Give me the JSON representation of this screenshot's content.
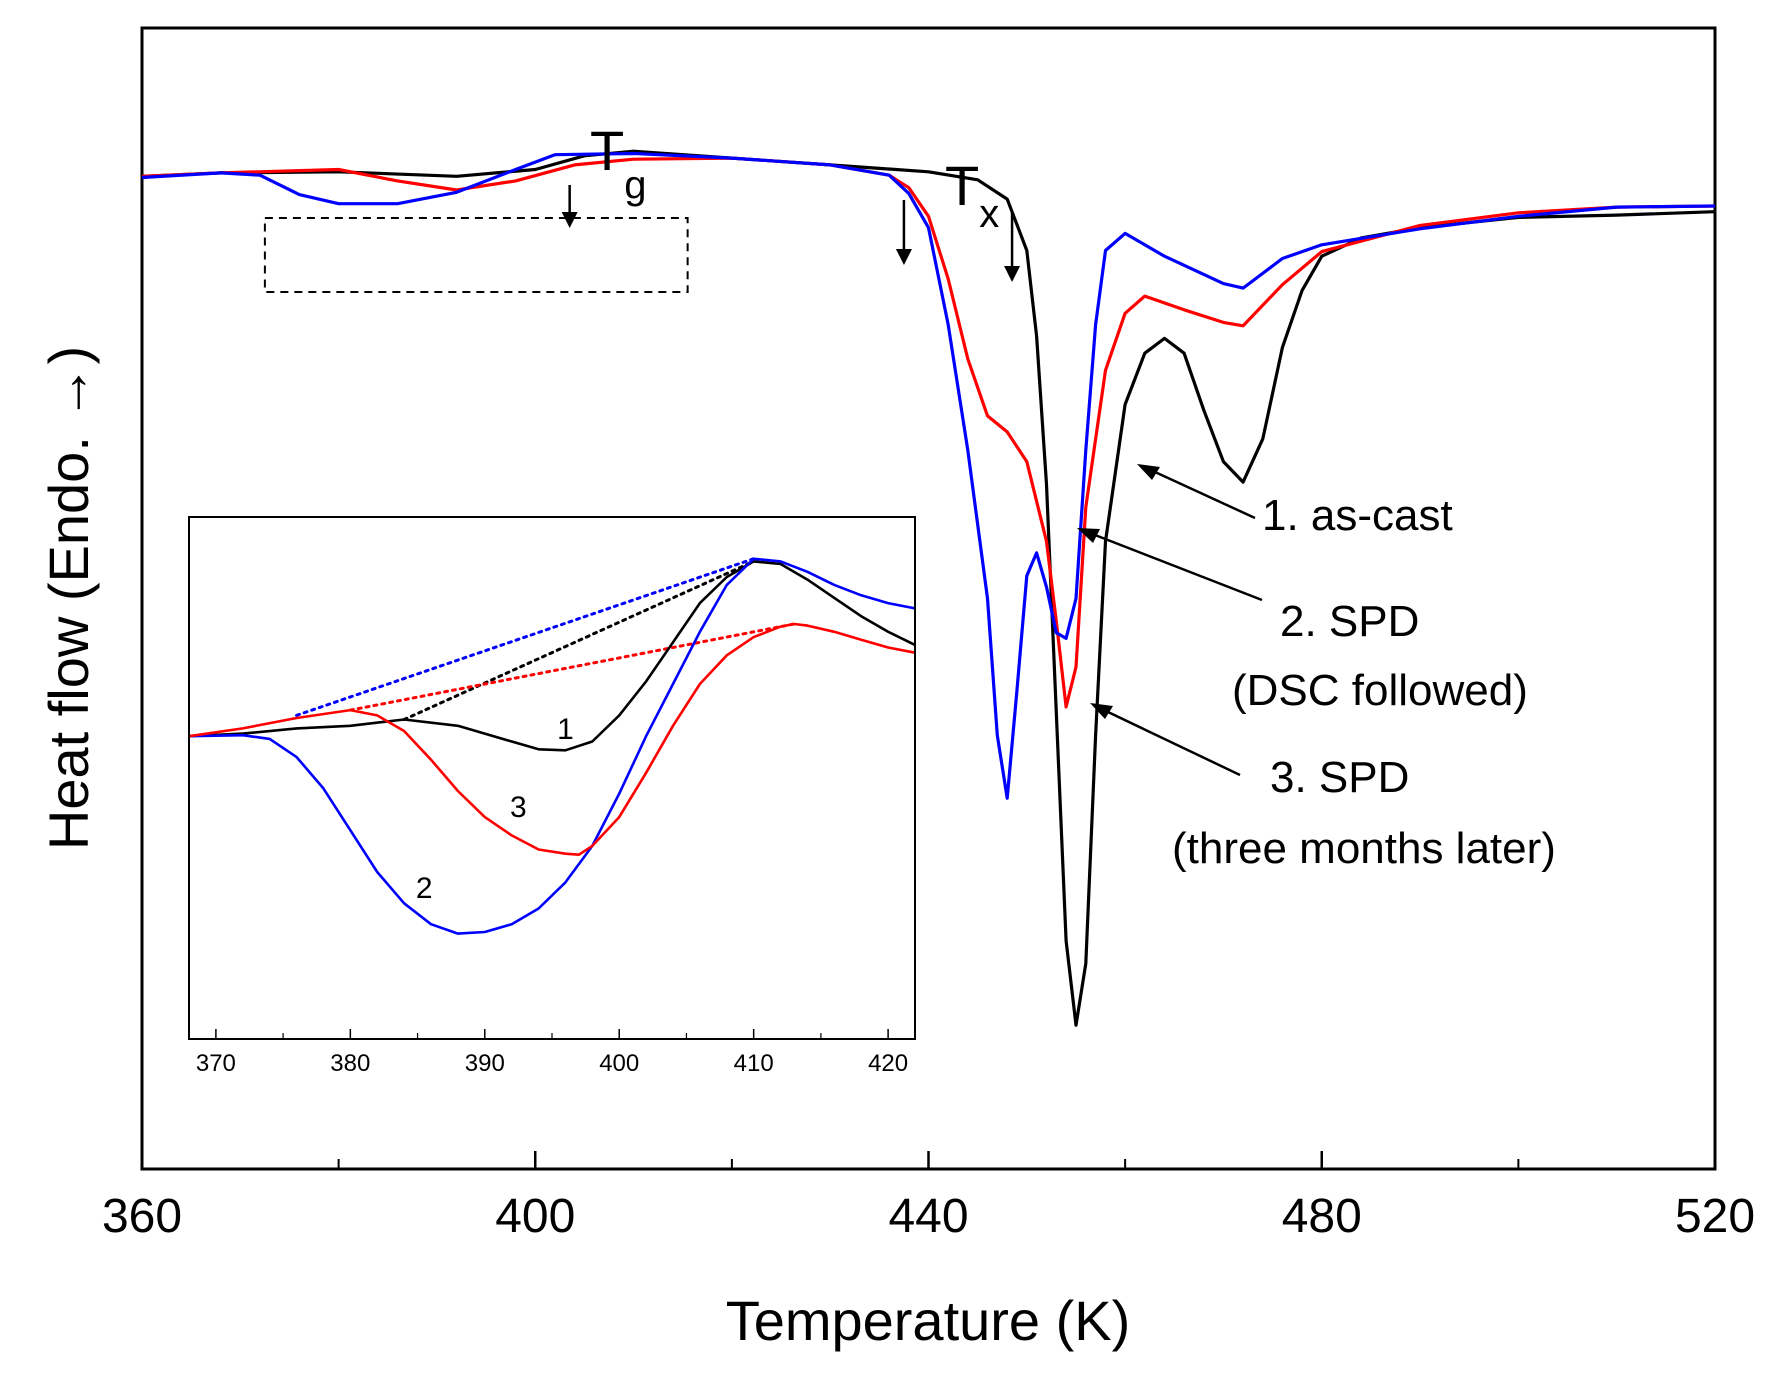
{
  "chart_data": [
    {
      "type": "line",
      "xlabel": "Temperature (K)",
      "ylabel": "Heat flow (Endo. →)",
      "xlim": [
        360,
        520
      ],
      "ylim": [
        0,
        100
      ],
      "x_ticks": [
        360,
        400,
        440,
        480,
        520
      ],
      "y_ticks_shown": false,
      "grid": false,
      "colors": {
        "1": "#000000",
        "2": "#0000ff",
        "3": "#ff0000"
      },
      "series": [
        {
          "name": "1. as-cast",
          "color": "#000000",
          "points": [
            [
              360,
              87.0
            ],
            [
              368,
              87.3
            ],
            [
              380,
              87.4
            ],
            [
              392,
              87.0
            ],
            [
              400,
              87.6
            ],
            [
              405,
              88.8
            ],
            [
              410,
              89.2
            ],
            [
              420,
              88.6
            ],
            [
              430,
              88.0
            ],
            [
              440,
              87.4
            ],
            [
              445,
              86.7
            ],
            [
              448,
              85.0
            ],
            [
              450,
              80.5
            ],
            [
              451,
              73.0
            ],
            [
              452,
              60.0
            ],
            [
              453,
              40.0
            ],
            [
              454,
              20.0
            ],
            [
              455,
              12.6
            ],
            [
              456,
              18.0
            ],
            [
              457,
              38.0
            ],
            [
              458,
              55.0
            ],
            [
              460,
              67.0
            ],
            [
              462,
              71.5
            ],
            [
              464,
              72.8
            ],
            [
              466,
              71.5
            ],
            [
              468,
              66.5
            ],
            [
              470,
              62.0
            ],
            [
              472,
              60.2
            ],
            [
              474,
              64.0
            ],
            [
              476,
              72.0
            ],
            [
              478,
              77.0
            ],
            [
              480,
              80.0
            ],
            [
              484,
              81.6
            ],
            [
              490,
              82.5
            ],
            [
              500,
              83.4
            ],
            [
              510,
              83.6
            ],
            [
              520,
              83.9
            ]
          ]
        },
        {
          "name": "2. SPD",
          "color": "#0000ff",
          "points": [
            [
              360,
              86.9
            ],
            [
              368,
              87.3
            ],
            [
              372,
              87.1
            ],
            [
              376,
              85.4
            ],
            [
              380,
              84.6
            ],
            [
              386,
              84.6
            ],
            [
              392,
              85.6
            ],
            [
              398,
              87.6
            ],
            [
              402,
              88.9
            ],
            [
              410,
              89.0
            ],
            [
              420,
              88.6
            ],
            [
              430,
              88.0
            ],
            [
              436,
              87.1
            ],
            [
              438,
              85.5
            ],
            [
              440,
              82.5
            ],
            [
              442,
              74.0
            ],
            [
              444,
              63.0
            ],
            [
              446,
              50.0
            ],
            [
              447,
              38.0
            ],
            [
              448,
              32.5
            ],
            [
              449,
              42.0
            ],
            [
              450,
              52.0
            ],
            [
              451,
              54.0
            ],
            [
              452,
              51.0
            ],
            [
              453,
              47.0
            ],
            [
              454,
              46.5
            ],
            [
              455,
              50.0
            ],
            [
              456,
              63.0
            ],
            [
              457,
              74.0
            ],
            [
              458,
              80.5
            ],
            [
              460,
              82.0
            ],
            [
              464,
              80.0
            ],
            [
              470,
              77.6
            ],
            [
              472,
              77.2
            ],
            [
              476,
              79.8
            ],
            [
              480,
              81.0
            ],
            [
              490,
              82.4
            ],
            [
              500,
              83.5
            ],
            [
              510,
              84.3
            ],
            [
              520,
              84.4
            ]
          ]
        },
        {
          "name": "2. SPD (DSC followed)",
          "note": "3. SPD (three months later)",
          "color": "#ff0000",
          "points": [
            [
              360,
              87.0
            ],
            [
              368,
              87.3
            ],
            [
              380,
              87.6
            ],
            [
              386,
              86.6
            ],
            [
              392,
              85.8
            ],
            [
              398,
              86.6
            ],
            [
              404,
              88.0
            ],
            [
              410,
              88.5
            ],
            [
              420,
              88.6
            ],
            [
              430,
              88.0
            ],
            [
              436,
              87.1
            ],
            [
              438,
              86.0
            ],
            [
              440,
              83.5
            ],
            [
              442,
              78.0
            ],
            [
              444,
              71.0
            ],
            [
              446,
              66.0
            ],
            [
              448,
              64.6
            ],
            [
              450,
              62.0
            ],
            [
              452,
              55.0
            ],
            [
              453,
              48.0
            ],
            [
              454,
              40.5
            ],
            [
              455,
              44.0
            ],
            [
              456,
              58.0
            ],
            [
              458,
              70.0
            ],
            [
              460,
              75.0
            ],
            [
              462,
              76.5
            ],
            [
              466,
              75.3
            ],
            [
              470,
              74.2
            ],
            [
              472,
              73.9
            ],
            [
              476,
              77.5
            ],
            [
              480,
              80.4
            ],
            [
              490,
              82.7
            ],
            [
              500,
              83.8
            ],
            [
              510,
              84.3
            ],
            [
              520,
              84.4
            ]
          ]
        }
      ],
      "annotations": [
        {
          "label": "T",
          "sub": "g",
          "x": 403.5,
          "marker": "arrow-down"
        },
        {
          "label": "T",
          "sub": "x",
          "x": 437.5,
          "marker": "arrow-down"
        },
        {
          "label": "",
          "x": 448.5,
          "marker": "arrow-down"
        },
        {
          "label": "1. as-cast",
          "series": "1. as-cast"
        },
        {
          "label": "2. SPD",
          "sub_label": "(DSC followed)"
        },
        {
          "label": "3. SPD",
          "sub_label": "(three months later)"
        }
      ],
      "highlight_box": {
        "x_range": [
          372.5,
          415.5
        ]
      }
    },
    {
      "type": "line",
      "role": "inset",
      "xlim": [
        368,
        422
      ],
      "ylim": [
        0,
        100
      ],
      "x_ticks": [
        370,
        380,
        390,
        400,
        410,
        420
      ],
      "series": [
        {
          "name": "1",
          "color": "#000000",
          "points": [
            [
              368,
              58.0
            ],
            [
              372,
              58.5
            ],
            [
              376,
              59.5
            ],
            [
              380,
              60.0
            ],
            [
              384,
              61.2
            ],
            [
              388,
              60.0
            ],
            [
              392,
              57.0
            ],
            [
              394,
              55.5
            ],
            [
              396,
              55.3
            ],
            [
              398,
              57.0
            ],
            [
              400,
              62.0
            ],
            [
              402,
              68.5
            ],
            [
              404,
              76.0
            ],
            [
              406,
              83.5
            ],
            [
              408,
              88.5
            ],
            [
              410,
              91.5
            ],
            [
              412,
              91.0
            ],
            [
              414,
              88.0
            ],
            [
              416,
              84.5
            ],
            [
              418,
              81.0
            ],
            [
              420,
              78.0
            ],
            [
              422,
              75.5
            ]
          ]
        },
        {
          "name": "2",
          "color": "#0000ff",
          "points": [
            [
              368,
              58.0
            ],
            [
              372,
              58.2
            ],
            [
              374,
              57.5
            ],
            [
              376,
              54.0
            ],
            [
              378,
              48.0
            ],
            [
              380,
              40.0
            ],
            [
              382,
              32.0
            ],
            [
              384,
              26.0
            ],
            [
              386,
              22.0
            ],
            [
              388,
              20.2
            ],
            [
              390,
              20.5
            ],
            [
              392,
              22.0
            ],
            [
              394,
              25.0
            ],
            [
              396,
              30.0
            ],
            [
              398,
              37.0
            ],
            [
              400,
              47.0
            ],
            [
              402,
              58.0
            ],
            [
              404,
              68.0
            ],
            [
              406,
              78.0
            ],
            [
              408,
              87.0
            ],
            [
              410,
              92.0
            ],
            [
              412,
              91.5
            ],
            [
              414,
              89.5
            ],
            [
              416,
              87.0
            ],
            [
              418,
              85.0
            ],
            [
              420,
              83.5
            ],
            [
              422,
              82.5
            ]
          ]
        },
        {
          "name": "3",
          "color": "#ff0000",
          "points": [
            [
              368,
              58.0
            ],
            [
              372,
              59.5
            ],
            [
              376,
              61.5
            ],
            [
              380,
              63.0
            ],
            [
              382,
              62.0
            ],
            [
              384,
              59.0
            ],
            [
              386,
              53.5
            ],
            [
              388,
              47.5
            ],
            [
              390,
              42.5
            ],
            [
              392,
              39.0
            ],
            [
              394,
              36.3
            ],
            [
              396,
              35.5
            ],
            [
              397,
              35.3
            ],
            [
              398,
              37.0
            ],
            [
              400,
              42.5
            ],
            [
              402,
              51.0
            ],
            [
              404,
              60.0
            ],
            [
              406,
              68.0
            ],
            [
              408,
              73.5
            ],
            [
              410,
              77.0
            ],
            [
              412,
              79.0
            ],
            [
              413,
              79.5
            ],
            [
              414,
              79.2
            ],
            [
              416,
              78.0
            ],
            [
              418,
              76.5
            ],
            [
              420,
              75.0
            ],
            [
              422,
              74.0
            ]
          ]
        }
      ],
      "baselines": [
        {
          "series": "1",
          "from": [
            384,
            61.2
          ],
          "to": [
            410,
            91.5
          ]
        },
        {
          "series": "2",
          "from": [
            376,
            62.0
          ],
          "to": [
            410,
            92.0
          ]
        },
        {
          "series": "3",
          "from": [
            380,
            63.0
          ],
          "to": [
            413,
            79.5
          ]
        }
      ],
      "curve_labels": [
        {
          "text": "1",
          "x": 396,
          "y": 57.5
        },
        {
          "text": "2",
          "x": 385.5,
          "y": 27.0
        },
        {
          "text": "3",
          "x": 392.5,
          "y": 42.5
        }
      ]
    }
  ]
}
